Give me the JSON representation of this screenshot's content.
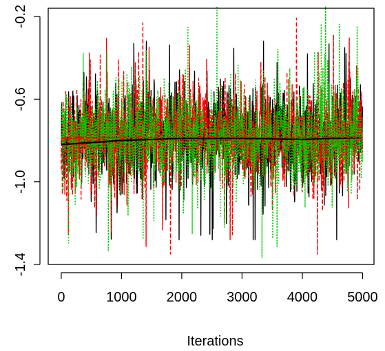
{
  "chart_data": {
    "type": "line",
    "title": "",
    "xlabel": "Iterations",
    "ylabel": "",
    "xlim": [
      0,
      5000
    ],
    "ylim": [
      -1.4,
      -0.16
    ],
    "x_ticks": [
      0,
      1000,
      2000,
      3000,
      4000,
      5000
    ],
    "x_tick_labels": [
      "0",
      "1000",
      "2000",
      "3000",
      "4000",
      "5000"
    ],
    "y_ticks": [
      -1.4,
      -1.0,
      -0.6,
      -0.2
    ],
    "y_tick_labels": [
      "-1.4",
      "-1.0",
      "-0.6",
      "-0.2"
    ],
    "grid": false,
    "legend": false,
    "n_iterations": 5000,
    "series": [
      {
        "color": "#000000",
        "style": "solid",
        "center": -0.78,
        "spread": 0.14,
        "min": -1.28,
        "max": -0.32
      },
      {
        "color": "#ff0000",
        "style": "dashed",
        "center": -0.78,
        "spread": 0.14,
        "min": -1.35,
        "max": -0.18
      },
      {
        "color": "#00cd00",
        "style": "dotted",
        "center": -0.78,
        "spread": 0.14,
        "min": -1.37,
        "max": -0.15
      }
    ],
    "smooth_lines": [
      {
        "color": "#000000",
        "style": "solid",
        "x": [
          0,
          1000,
          2000,
          3000,
          4000,
          5000
        ],
        "y": [
          -0.82,
          -0.8,
          -0.79,
          -0.79,
          -0.795,
          -0.785
        ]
      },
      {
        "color": "#ff0000",
        "style": "dashed",
        "x": [
          0,
          1000,
          2000,
          3000,
          4000,
          5000
        ],
        "y": [
          -0.79,
          -0.785,
          -0.785,
          -0.785,
          -0.785,
          -0.785
        ]
      }
    ]
  }
}
